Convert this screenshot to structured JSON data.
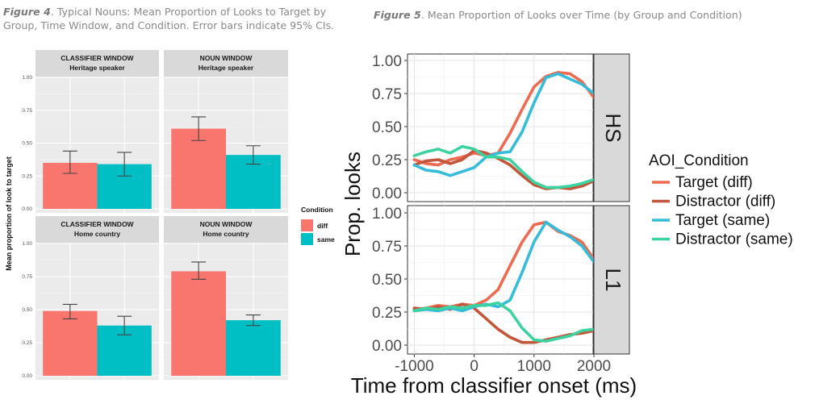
{
  "captions": {
    "fig4_label": "Figure 4",
    "fig4_text": ". Typical Nouns: Mean Proportion of Looks to Target  by Group, Time Window, and Condition. Error bars indicate 95% CIs.",
    "fig5_label": "Figure 5",
    "fig5_text": ". Mean Proportion of Looks over Time (by Group and Condition)"
  },
  "colors": {
    "diff": "#F8766D",
    "same": "#00BFC4",
    "target_diff": "#EE6A50",
    "distractor_diff": "#C2553A",
    "target_same": "#35BCD9",
    "distractor_same": "#3DD3A0"
  },
  "chart_data": [
    {
      "type": "bar",
      "ylabel": "Mean proportion of look to target",
      "ylim": [
        0,
        1
      ],
      "yticks": [
        "0.00",
        "0.25",
        "0.50",
        "0.75",
        "1.00"
      ],
      "legend": {
        "title": "Condition",
        "entries": [
          "diff",
          "same"
        ],
        "position": "right"
      },
      "grid": true,
      "panels": [
        {
          "strip1": "CLASSIFIER WINDOW",
          "strip2": "Heritage speaker",
          "diff": 0.35,
          "diff_ci": [
            0.27,
            0.44
          ],
          "same": 0.34,
          "same_ci": [
            0.25,
            0.43
          ]
        },
        {
          "strip1": "NOUN WINDOW",
          "strip2": "Heritage speaker",
          "diff": 0.61,
          "diff_ci": [
            0.52,
            0.7
          ],
          "same": 0.41,
          "same_ci": [
            0.34,
            0.48
          ]
        },
        {
          "strip1": "CLASSIFIER WINDOW",
          "strip2": "Home country",
          "diff": 0.49,
          "diff_ci": [
            0.43,
            0.54
          ],
          "same": 0.38,
          "same_ci": [
            0.31,
            0.45
          ]
        },
        {
          "strip1": "NOUN WINDOW",
          "strip2": "Home country",
          "diff": 0.79,
          "diff_ci": [
            0.73,
            0.86
          ],
          "same": 0.42,
          "same_ci": [
            0.38,
            0.46
          ]
        }
      ]
    },
    {
      "type": "line",
      "xlabel": "Time from classifier onset (ms)",
      "ylabel": "Prop. looks",
      "xlim": [
        -1100,
        2000
      ],
      "ylim": [
        0,
        1
      ],
      "xticks": [
        "-1000",
        "0",
        "1000",
        "2000"
      ],
      "xtick_values": [
        -1000,
        0,
        1000,
        2000
      ],
      "yticks": [
        "0.00",
        "0.25",
        "0.50",
        "0.75",
        "1.00"
      ],
      "legend": {
        "title": "AOI_Condition",
        "position": "right"
      },
      "grid": true,
      "panels": [
        {
          "strip": "HS",
          "series": [
            {
              "name": "Target (diff)",
              "x": [
                -1000,
                -800,
                -600,
                -400,
                -200,
                0,
                200,
                400,
                600,
                800,
                1000,
                1200,
                1400,
                1600,
                1800,
                2000
              ],
              "y": [
                0.25,
                0.22,
                0.21,
                0.25,
                0.27,
                0.3,
                0.28,
                0.3,
                0.45,
                0.63,
                0.8,
                0.88,
                0.91,
                0.9,
                0.84,
                0.72
              ]
            },
            {
              "name": "Distractor (diff)",
              "x": [
                -1000,
                -800,
                -600,
                -400,
                -200,
                0,
                200,
                400,
                600,
                800,
                1000,
                1200,
                1400,
                1600,
                1800,
                2000
              ],
              "y": [
                0.21,
                0.24,
                0.25,
                0.22,
                0.25,
                0.32,
                0.3,
                0.26,
                0.21,
                0.13,
                0.06,
                0.03,
                0.04,
                0.03,
                0.05,
                0.09
              ]
            },
            {
              "name": "Target (same)",
              "x": [
                -1000,
                -800,
                -600,
                -400,
                -200,
                0,
                200,
                400,
                600,
                800,
                1000,
                1200,
                1400,
                1600,
                1800,
                2000
              ],
              "y": [
                0.21,
                0.17,
                0.16,
                0.13,
                0.16,
                0.19,
                0.27,
                0.3,
                0.31,
                0.46,
                0.68,
                0.87,
                0.9,
                0.86,
                0.82,
                0.75
              ]
            },
            {
              "name": "Distractor (same)",
              "x": [
                -1000,
                -800,
                -600,
                -400,
                -200,
                0,
                200,
                400,
                600,
                800,
                1000,
                1200,
                1400,
                1600,
                1800,
                2000
              ],
              "y": [
                0.28,
                0.31,
                0.33,
                0.3,
                0.35,
                0.33,
                0.27,
                0.27,
                0.25,
                0.16,
                0.08,
                0.04,
                0.04,
                0.05,
                0.07,
                0.1
              ]
            }
          ]
        },
        {
          "strip": "L1",
          "series": [
            {
              "name": "Target (diff)",
              "x": [
                -1000,
                -800,
                -600,
                -400,
                -200,
                0,
                200,
                400,
                600,
                800,
                1000,
                1200,
                1400,
                1600,
                1800,
                2000
              ],
              "y": [
                0.27,
                0.28,
                0.3,
                0.29,
                0.31,
                0.3,
                0.34,
                0.42,
                0.6,
                0.78,
                0.91,
                0.93,
                0.86,
                0.83,
                0.78,
                0.65
              ]
            },
            {
              "name": "Distractor (diff)",
              "x": [
                -1000,
                -800,
                -600,
                -400,
                -200,
                0,
                200,
                400,
                600,
                800,
                1000,
                1200,
                1400,
                1600,
                1800,
                2000
              ],
              "y": [
                0.28,
                0.27,
                0.29,
                0.27,
                0.31,
                0.28,
                0.2,
                0.12,
                0.06,
                0.02,
                0.02,
                0.04,
                0.06,
                0.08,
                0.09,
                0.11
              ]
            },
            {
              "name": "Target (same)",
              "x": [
                -1000,
                -800,
                -600,
                -400,
                -200,
                0,
                200,
                400,
                600,
                800,
                1000,
                1200,
                1400,
                1600,
                1800,
                2000
              ],
              "y": [
                0.26,
                0.27,
                0.26,
                0.28,
                0.26,
                0.29,
                0.31,
                0.29,
                0.34,
                0.55,
                0.78,
                0.93,
                0.87,
                0.82,
                0.75,
                0.63
              ]
            },
            {
              "name": "Distractor (same)",
              "x": [
                -1000,
                -800,
                -600,
                -400,
                -200,
                0,
                200,
                400,
                600,
                800,
                1000,
                1200,
                1400,
                1600,
                1800,
                2000
              ],
              "y": [
                0.26,
                0.28,
                0.27,
                0.29,
                0.28,
                0.3,
                0.3,
                0.32,
                0.26,
                0.13,
                0.04,
                0.03,
                0.05,
                0.07,
                0.11,
                0.12
              ]
            }
          ]
        }
      ]
    }
  ]
}
